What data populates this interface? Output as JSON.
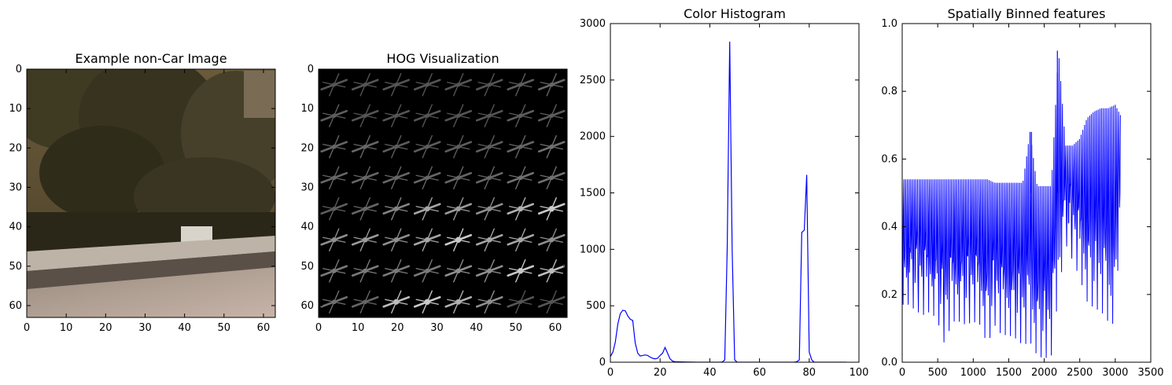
{
  "colors": {
    "line": "#0000ff",
    "axes": "#000000",
    "background": "#ffffff"
  },
  "panels": [
    {
      "id": "image",
      "title": "Example non-Car Image",
      "type": "image",
      "content": "photo of trees above a road guardrail with a small white car",
      "xlim": [
        0,
        63
      ],
      "ylim": [
        63,
        0
      ],
      "xticks": [
        0,
        10,
        20,
        30,
        40,
        50,
        60
      ],
      "yticks": [
        0,
        10,
        20,
        30,
        40,
        50,
        60
      ]
    },
    {
      "id": "hog",
      "title": "HOG Visualization",
      "type": "image",
      "content": "grayscale HOG gradient cells on black background",
      "xlim": [
        0,
        63
      ],
      "ylim": [
        63,
        0
      ],
      "xticks": [
        0,
        10,
        20,
        30,
        40,
        50,
        60
      ],
      "yticks": [
        0,
        10,
        20,
        30,
        40,
        50,
        60
      ]
    }
  ],
  "chart_data": [
    {
      "type": "line",
      "title": "Color Histogram",
      "xlabel": "",
      "ylabel": "",
      "xlim": [
        0,
        100
      ],
      "ylim": [
        0,
        3000
      ],
      "xticks": [
        0,
        20,
        40,
        60,
        80,
        100
      ],
      "yticks": [
        0,
        500,
        1000,
        1500,
        2000,
        2500,
        3000
      ],
      "grid": false,
      "series": [
        {
          "x": [
            0,
            1,
            2,
            3,
            4,
            5,
            6,
            7,
            8,
            9,
            10,
            11,
            12,
            13,
            14,
            15,
            16,
            17,
            18,
            19,
            20,
            21,
            22,
            23,
            24,
            25,
            26,
            30,
            35,
            40,
            44,
            45,
            46,
            47,
            48,
            49,
            50,
            51,
            60,
            70,
            74,
            75,
            76,
            77,
            78,
            79,
            80,
            81,
            82,
            90,
            95
          ],
          "y": [
            50,
            90,
            180,
            340,
            430,
            460,
            455,
            410,
            380,
            370,
            170,
            80,
            55,
            60,
            65,
            60,
            45,
            35,
            30,
            35,
            60,
            80,
            130,
            80,
            30,
            10,
            5,
            2,
            0,
            0,
            0,
            2,
            20,
            1000,
            2840,
            1000,
            20,
            0,
            0,
            0,
            0,
            5,
            20,
            1150,
            1170,
            1660,
            90,
            20,
            0,
            0,
            0
          ]
        }
      ]
    },
    {
      "type": "line",
      "title": "Spatially Binned features",
      "xlabel": "",
      "ylabel": "",
      "xlim": [
        0,
        3500
      ],
      "ylim": [
        0.0,
        1.0
      ],
      "xticks": [
        0,
        500,
        1000,
        1500,
        2000,
        2500,
        3000,
        3500
      ],
      "ytick_labels": [
        "0.0",
        "0.2",
        "0.4",
        "0.6",
        "0.8",
        "1.0"
      ],
      "grid": false,
      "series": [
        {
          "description": "3072-point feature vector oscillating rapidly",
          "x": [
            0,
            100,
            200,
            300,
            400,
            500,
            600,
            700,
            800,
            900,
            1000,
            1100,
            1200,
            1300,
            1400,
            1500,
            1600,
            1700,
            1800,
            1900,
            2000,
            2100,
            2200,
            2300,
            2400,
            2500,
            2600,
            2700,
            2800,
            2900,
            3000,
            3072
          ],
          "upper": [
            0.54,
            0.54,
            0.54,
            0.54,
            0.54,
            0.54,
            0.54,
            0.54,
            0.54,
            0.54,
            0.54,
            0.54,
            0.54,
            0.53,
            0.53,
            0.53,
            0.53,
            0.53,
            0.68,
            0.52,
            0.52,
            0.52,
            0.92,
            0.64,
            0.64,
            0.66,
            0.72,
            0.74,
            0.75,
            0.75,
            0.76,
            0.73
          ],
          "lower": [
            0.17,
            0.17,
            0.15,
            0.14,
            0.15,
            0.12,
            0.05,
            0.12,
            0.12,
            0.11,
            0.12,
            0.11,
            0.05,
            0.11,
            0.08,
            0.08,
            0.07,
            0.05,
            0.06,
            0.02,
            0.01,
            0.02,
            0.2,
            0.35,
            0.3,
            0.25,
            0.18,
            0.16,
            0.15,
            0.12,
            0.11,
            0.43
          ]
        }
      ]
    }
  ]
}
